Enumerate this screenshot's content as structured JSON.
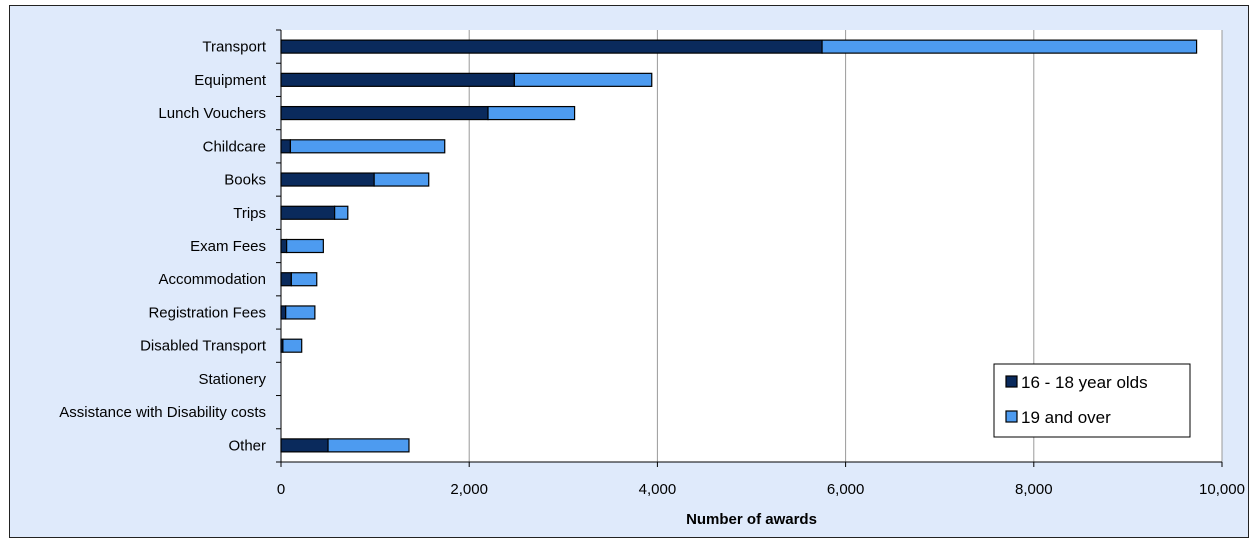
{
  "chart_data": {
    "type": "bar",
    "orientation": "horizontal",
    "stacked": true,
    "categories": [
      "Transport",
      "Equipment",
      "Lunch Vouchers",
      "Childcare",
      "Books",
      "Trips",
      "Exam Fees",
      "Accommodation",
      "Registration Fees",
      "Disabled Transport",
      "Stationery",
      "Assistance with Disability costs",
      "Other"
    ],
    "series": [
      {
        "name": "16 - 18 year olds",
        "color": "#0a2a5c",
        "values": [
          5750,
          2480,
          2200,
          100,
          990,
          570,
          60,
          110,
          50,
          20,
          0,
          0,
          500
        ]
      },
      {
        "name": "19 and over",
        "color": "#4d9bf0",
        "values": [
          3980,
          1460,
          920,
          1640,
          580,
          140,
          390,
          270,
          310,
          200,
          0,
          0,
          860
        ]
      }
    ],
    "xlabel": "Number of awards",
    "ylabel": "",
    "xlim": [
      0,
      10000
    ],
    "x_ticks": [
      0,
      2000,
      4000,
      6000,
      8000,
      10000
    ],
    "x_tick_labels": [
      "0",
      "2,000",
      "4,000",
      "6,000",
      "8,000",
      "10,000"
    ],
    "grid": "vertical",
    "legend_position": "bottom-right",
    "plot_background": "#ffffff",
    "chart_background": "#dfeafb"
  }
}
